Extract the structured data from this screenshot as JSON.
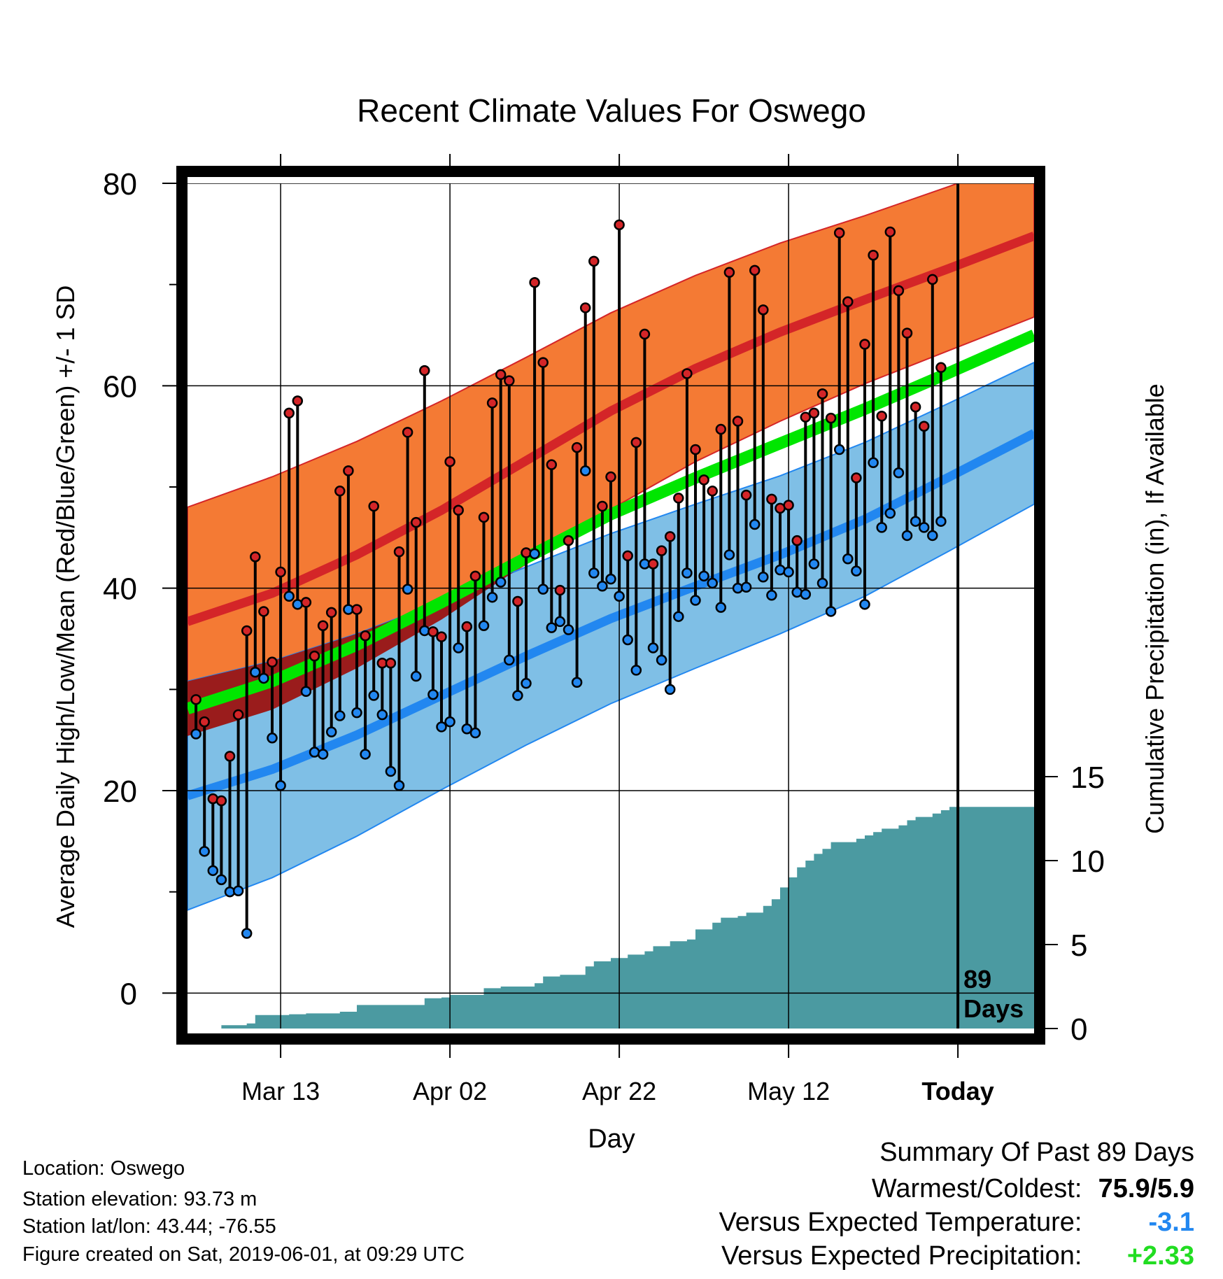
{
  "chart_data": {
    "type": "line",
    "title": "Recent Climate Values For Oswego",
    "xlabel": "Day",
    "ylabel": "Average Daily High/Low/Mean (Red/Blue/Green) +/- 1 SD",
    "y2label": "Cumulative Precipitation (in), If Available",
    "ylim": [
      -3.5,
      80
    ],
    "y2lim": [
      0,
      15
    ],
    "yticks": [
      "0",
      "20",
      "40",
      "60",
      "80"
    ],
    "y2ticks": [
      "0",
      "5",
      "10",
      "15"
    ],
    "xticks": [
      "Mar 13",
      "Apr 02",
      "Apr 22",
      "May 12",
      "Today"
    ],
    "xtick_days": [
      11,
      31,
      51,
      71,
      91
    ],
    "xlim": [
      0,
      100
    ],
    "today_day": 91,
    "period_label_number": "89",
    "period_label_unit": "Days",
    "normal_high": [
      {
        "day": 0,
        "mean": 36.7,
        "sd": 11.3
      },
      {
        "day": 10,
        "mean": 39.5,
        "sd": 11.5
      },
      {
        "day": 20,
        "mean": 43.3,
        "sd": 11.2
      },
      {
        "day": 30,
        "mean": 47.7,
        "sd": 10.8
      },
      {
        "day": 40,
        "mean": 52.6,
        "sd": 10.2
      },
      {
        "day": 50,
        "mean": 57.5,
        "sd": 9.7
      },
      {
        "day": 60,
        "mean": 61.7,
        "sd": 9.2
      },
      {
        "day": 70,
        "mean": 65.3,
        "sd": 8.8
      },
      {
        "day": 80,
        "mean": 68.5,
        "sd": 8.3
      },
      {
        "day": 90,
        "mean": 71.6,
        "sd": 8.1
      },
      {
        "day": 100,
        "mean": 74.8,
        "sd": 8.0
      }
    ],
    "normal_low": [
      {
        "day": 0,
        "mean": 19.5,
        "sd": 11.3
      },
      {
        "day": 10,
        "mean": 22.1,
        "sd": 10.7
      },
      {
        "day": 20,
        "mean": 25.5,
        "sd": 10.0
      },
      {
        "day": 30,
        "mean": 29.4,
        "sd": 9.3
      },
      {
        "day": 40,
        "mean": 33.3,
        "sd": 8.8
      },
      {
        "day": 50,
        "mean": 37.0,
        "sd": 8.4
      },
      {
        "day": 60,
        "mean": 40.2,
        "sd": 8.1
      },
      {
        "day": 70,
        "mean": 43.3,
        "sd": 7.8
      },
      {
        "day": 80,
        "mean": 46.8,
        "sd": 7.6
      },
      {
        "day": 90,
        "mean": 51.0,
        "sd": 7.3
      },
      {
        "day": 100,
        "mean": 55.3,
        "sd": 7.0
      }
    ],
    "normal_mean": [
      {
        "day": 0,
        "mean": 28.1
      },
      {
        "day": 10,
        "mean": 30.8
      },
      {
        "day": 20,
        "mean": 34.4
      },
      {
        "day": 30,
        "mean": 38.6
      },
      {
        "day": 40,
        "mean": 43.0
      },
      {
        "day": 50,
        "mean": 47.3
      },
      {
        "day": 60,
        "mean": 50.9
      },
      {
        "day": 70,
        "mean": 54.3
      },
      {
        "day": 80,
        "mean": 57.7
      },
      {
        "day": 90,
        "mean": 61.3
      },
      {
        "day": 100,
        "mean": 65.0
      }
    ],
    "series": [
      {
        "x": [
          1,
          2,
          3,
          4,
          5,
          6,
          7,
          8,
          9,
          10,
          11,
          12,
          13,
          14,
          15,
          16,
          17,
          18,
          19,
          20,
          21,
          22,
          23,
          24,
          25,
          26,
          27,
          28,
          29,
          30,
          31,
          32,
          33,
          34,
          35,
          36,
          37,
          38,
          39,
          40,
          41,
          42,
          43,
          44,
          45,
          46,
          47,
          48,
          49,
          50,
          51,
          52,
          53,
          54,
          55,
          56,
          57,
          58,
          59,
          60,
          61,
          62,
          63,
          64,
          65,
          66,
          67,
          68,
          69,
          70,
          71,
          72,
          73,
          74,
          75,
          76,
          77,
          78,
          79,
          80,
          81,
          82,
          83,
          84,
          85,
          86,
          87,
          88,
          89
        ],
        "high": [
          29.0,
          26.8,
          19.2,
          19.0,
          23.4,
          27.5,
          35.8,
          43.1,
          37.7,
          32.7,
          41.6,
          57.3,
          58.5,
          38.6,
          33.3,
          36.3,
          37.6,
          49.6,
          51.6,
          37.9,
          35.3,
          48.1,
          32.6,
          32.6,
          43.6,
          55.4,
          46.5,
          61.5,
          35.7,
          35.2,
          52.5,
          47.7,
          36.2,
          41.2,
          47.0,
          58.3,
          61.1,
          60.5,
          38.7,
          43.5,
          70.2,
          62.3,
          52.2,
          39.8,
          44.7,
          53.9,
          67.7,
          72.3,
          48.1,
          51.0,
          75.9,
          43.2,
          54.4,
          65.1,
          42.4,
          43.7,
          45.1,
          48.9,
          61.2,
          53.7,
          50.7,
          49.6,
          55.7,
          71.2,
          56.5,
          49.2,
          71.4,
          67.5,
          48.8,
          47.9,
          48.2,
          44.7,
          56.9,
          57.3,
          59.2,
          56.8,
          75.1,
          68.3,
          50.9,
          64.1,
          72.9,
          57.0,
          75.2,
          69.4,
          65.2,
          57.9,
          56.0,
          70.5,
          61.8
        ],
        "low": [
          25.6,
          14.0,
          12.1,
          11.2,
          10.0,
          10.1,
          5.9,
          31.7,
          31.1,
          25.2,
          20.5,
          39.2,
          38.4,
          29.8,
          23.8,
          23.6,
          25.8,
          27.4,
          37.9,
          27.7,
          23.6,
          29.4,
          27.5,
          21.9,
          20.5,
          39.9,
          31.3,
          35.8,
          29.5,
          26.3,
          26.8,
          34.1,
          26.1,
          25.7,
          36.3,
          39.1,
          40.6,
          32.9,
          29.4,
          30.6,
          43.4,
          39.9,
          36.1,
          36.7,
          35.9,
          30.7,
          51.6,
          41.5,
          40.2,
          40.9,
          39.2,
          34.9,
          31.9,
          42.4,
          34.1,
          32.9,
          30.0,
          37.2,
          41.5,
          38.8,
          41.2,
          40.5,
          38.1,
          43.3,
          40.0,
          40.1,
          46.3,
          41.1,
          39.3,
          41.8,
          41.6,
          39.6,
          39.4,
          42.4,
          40.5,
          37.7,
          53.7,
          42.9,
          41.7,
          38.4,
          52.4,
          46.0,
          47.4,
          51.4,
          45.2,
          46.6,
          46.0,
          45.2,
          46.6
        ]
      }
    ],
    "precipitation": {
      "days": [
        3,
        4,
        7,
        8,
        10,
        12,
        14,
        16,
        18,
        20,
        22,
        24,
        26,
        28,
        30,
        31,
        33,
        35,
        37,
        39,
        41,
        42,
        44,
        47,
        48,
        50,
        52,
        54,
        55,
        57,
        59,
        60,
        62,
        63,
        65,
        66,
        68,
        69,
        70,
        71,
        72,
        73,
        74,
        75,
        76,
        79,
        80,
        81,
        82,
        84,
        85,
        86,
        88,
        89,
        90,
        100
      ],
      "cumulative": [
        0.0,
        0.2,
        0.3,
        0.8,
        0.8,
        0.85,
        0.9,
        0.9,
        1.0,
        1.4,
        1.4,
        1.4,
        1.4,
        1.8,
        1.85,
        2.0,
        2.0,
        2.4,
        2.5,
        2.5,
        2.7,
        3.1,
        3.2,
        3.7,
        4.0,
        4.2,
        4.4,
        4.6,
        4.9,
        5.2,
        5.3,
        5.9,
        6.3,
        6.6,
        6.7,
        6.9,
        7.3,
        7.7,
        8.4,
        9.0,
        9.6,
        10.0,
        10.4,
        10.7,
        11.1,
        11.3,
        11.5,
        11.7,
        11.9,
        12.1,
        12.4,
        12.6,
        12.8,
        13.0,
        13.2,
        13.2
      ]
    },
    "grid": true,
    "colors": {
      "high_band": "#f47a34",
      "high_mean": "#d42528",
      "low_band": "#7fbfe6",
      "low_mean": "#2287f0",
      "mean_line": "#00e600",
      "overlap": "#9a1c1c",
      "precip": "#4b9aa1",
      "high_marker": "#d42528",
      "low_marker": "#2287f0"
    }
  },
  "metadata": {
    "location": "Location: Oswego",
    "elevation": "Station elevation: 93.73 m",
    "latlon": "Station lat/lon: 43.44; -76.55",
    "created": "Figure created on Sat, 2019-06-01, at 09:29 UTC"
  },
  "summary": {
    "heading": "Summary Of Past 89 Days",
    "warm_cold_label": "Warmest/Coldest:",
    "warm_cold_value": "75.9/5.9",
    "temp_label": "Versus Expected Temperature:",
    "temp_value": "-3.1",
    "temp_color": "#2287f0",
    "precip_label": "Versus Expected Precipitation:",
    "precip_value": "+2.33",
    "precip_color": "#22dd22"
  }
}
